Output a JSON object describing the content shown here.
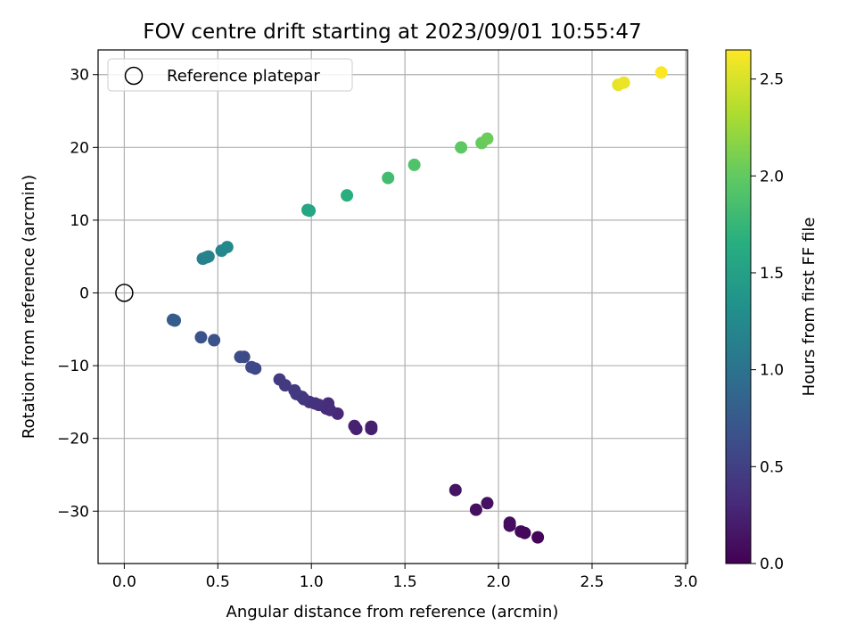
{
  "chart_data": {
    "type": "scatter",
    "title": "FOV centre drift starting at 2023/09/01 10:55:47",
    "xlabel": "Angular distance from reference (arcmin)",
    "ylabel": "Rotation from reference (arcmin)",
    "xlim": [
      -0.14,
      3.01
    ],
    "ylim": [
      -37.2,
      33.4
    ],
    "xticks": [
      0.0,
      0.5,
      1.0,
      1.5,
      2.0,
      2.5,
      3.0
    ],
    "yticks": [
      30,
      20,
      10,
      0,
      -10,
      -20,
      -30
    ],
    "grid": true,
    "legend": {
      "placement": "upper-left",
      "entries": [
        "Reference platepar"
      ]
    },
    "reference_point": {
      "name": "Reference platepar",
      "x": 0.0,
      "y": 0.0
    },
    "colorbar": {
      "label": "Hours from first FF file",
      "range": [
        0.0,
        2.65
      ],
      "ticks": [
        0.0,
        0.5,
        1.0,
        1.5,
        2.0,
        2.5
      ],
      "colormap": "viridis"
    },
    "points": [
      {
        "x": 2.21,
        "y": -33.6,
        "c": 0.03
      },
      {
        "x": 2.14,
        "y": -33.0,
        "c": 0.05
      },
      {
        "x": 2.12,
        "y": -32.8,
        "c": 0.06
      },
      {
        "x": 2.06,
        "y": -32.0,
        "c": 0.08
      },
      {
        "x": 2.06,
        "y": -31.6,
        "c": 0.09
      },
      {
        "x": 1.88,
        "y": -29.8,
        "c": 0.11
      },
      {
        "x": 1.94,
        "y": -28.9,
        "c": 0.12
      },
      {
        "x": 1.77,
        "y": -27.1,
        "c": 0.14
      },
      {
        "x": 1.32,
        "y": -18.7,
        "c": 0.22
      },
      {
        "x": 1.32,
        "y": -18.4,
        "c": 0.23
      },
      {
        "x": 1.24,
        "y": -18.7,
        "c": 0.24
      },
      {
        "x": 1.23,
        "y": -18.3,
        "c": 0.25
      },
      {
        "x": 1.14,
        "y": -16.6,
        "c": 0.3
      },
      {
        "x": 1.1,
        "y": -16.1,
        "c": 0.32
      },
      {
        "x": 1.08,
        "y": -15.9,
        "c": 0.33
      },
      {
        "x": 1.09,
        "y": -15.2,
        "c": 0.34
      },
      {
        "x": 1.04,
        "y": -15.4,
        "c": 0.36
      },
      {
        "x": 1.02,
        "y": -15.2,
        "c": 0.37
      },
      {
        "x": 0.99,
        "y": -15.0,
        "c": 0.38
      },
      {
        "x": 0.96,
        "y": -14.6,
        "c": 0.4
      },
      {
        "x": 0.95,
        "y": -14.3,
        "c": 0.41
      },
      {
        "x": 0.92,
        "y": -13.9,
        "c": 0.43
      },
      {
        "x": 0.91,
        "y": -13.4,
        "c": 0.44
      },
      {
        "x": 0.86,
        "y": -12.7,
        "c": 0.45
      },
      {
        "x": 0.83,
        "y": -11.9,
        "c": 0.46
      },
      {
        "x": 0.7,
        "y": -10.4,
        "c": 0.56
      },
      {
        "x": 0.68,
        "y": -10.2,
        "c": 0.58
      },
      {
        "x": 0.64,
        "y": -8.8,
        "c": 0.6
      },
      {
        "x": 0.62,
        "y": -8.8,
        "c": 0.61
      },
      {
        "x": 0.48,
        "y": -6.5,
        "c": 0.66
      },
      {
        "x": 0.41,
        "y": -6.1,
        "c": 0.68
      },
      {
        "x": 0.27,
        "y": -3.8,
        "c": 0.76
      },
      {
        "x": 0.26,
        "y": -3.7,
        "c": 0.77
      },
      {
        "x": 0.42,
        "y": 4.7,
        "c": 1.15
      },
      {
        "x": 0.44,
        "y": 4.9,
        "c": 1.17
      },
      {
        "x": 0.45,
        "y": 5.0,
        "c": 1.18
      },
      {
        "x": 0.52,
        "y": 5.8,
        "c": 1.22
      },
      {
        "x": 0.55,
        "y": 6.3,
        "c": 1.24
      },
      {
        "x": 0.98,
        "y": 11.4,
        "c": 1.55
      },
      {
        "x": 0.99,
        "y": 11.3,
        "c": 1.56
      },
      {
        "x": 1.19,
        "y": 13.4,
        "c": 1.66
      },
      {
        "x": 1.41,
        "y": 15.8,
        "c": 1.82
      },
      {
        "x": 1.55,
        "y": 17.6,
        "c": 1.9
      },
      {
        "x": 1.8,
        "y": 20.0,
        "c": 1.98
      },
      {
        "x": 1.91,
        "y": 20.6,
        "c": 2.02
      },
      {
        "x": 1.94,
        "y": 21.2,
        "c": 2.04
      },
      {
        "x": 2.64,
        "y": 28.6,
        "c": 2.56
      },
      {
        "x": 2.67,
        "y": 28.9,
        "c": 2.58
      },
      {
        "x": 2.87,
        "y": 30.3,
        "c": 2.65
      }
    ]
  }
}
